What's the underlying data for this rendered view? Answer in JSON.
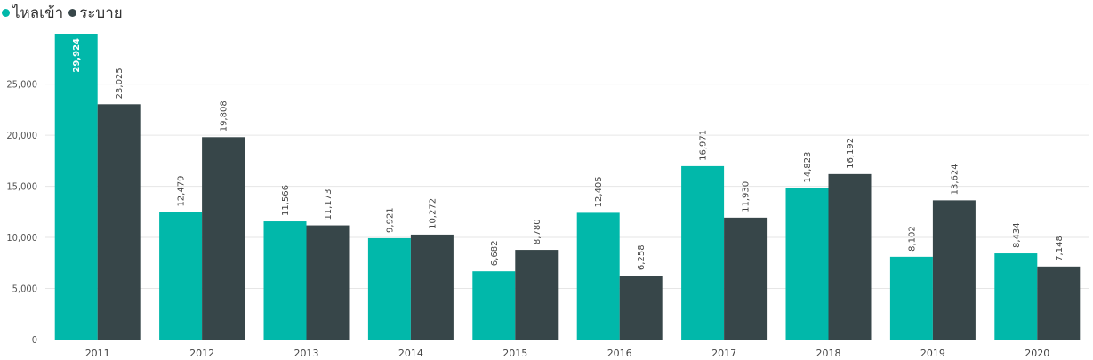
{
  "chart_data": {
    "type": "bar",
    "categories": [
      "2011",
      "2012",
      "2013",
      "2014",
      "2015",
      "2016",
      "2017",
      "2018",
      "2019",
      "2020"
    ],
    "series": [
      {
        "name": "ไหลเข้า",
        "color": "#01b8aa",
        "values": [
          29924,
          12479,
          11566,
          9921,
          6682,
          12405,
          16971,
          14823,
          8102,
          8434
        ],
        "labels": [
          "29,924",
          "12,479",
          "11,566",
          "9,921",
          "6,682",
          "12,405",
          "16,971",
          "14,823",
          "8,102",
          "8,434"
        ]
      },
      {
        "name": "ระบาย",
        "color": "#374649",
        "values": [
          23025,
          19808,
          11173,
          10272,
          8780,
          6258,
          11930,
          16192,
          13624,
          7148
        ],
        "labels": [
          "23,025",
          "19,808",
          "11,173",
          "10,272",
          "8,780",
          "6,258",
          "11,930",
          "16,192",
          "13,624",
          "7,148"
        ]
      }
    ],
    "yticks": [
      0,
      5000,
      10000,
      15000,
      20000,
      25000
    ],
    "ytick_labels": [
      "0",
      "5,000",
      "10,000",
      "15,000",
      "20,000",
      "25,000"
    ],
    "ylim": [
      0,
      29924
    ],
    "legend_position": "top-left",
    "grid": true
  }
}
